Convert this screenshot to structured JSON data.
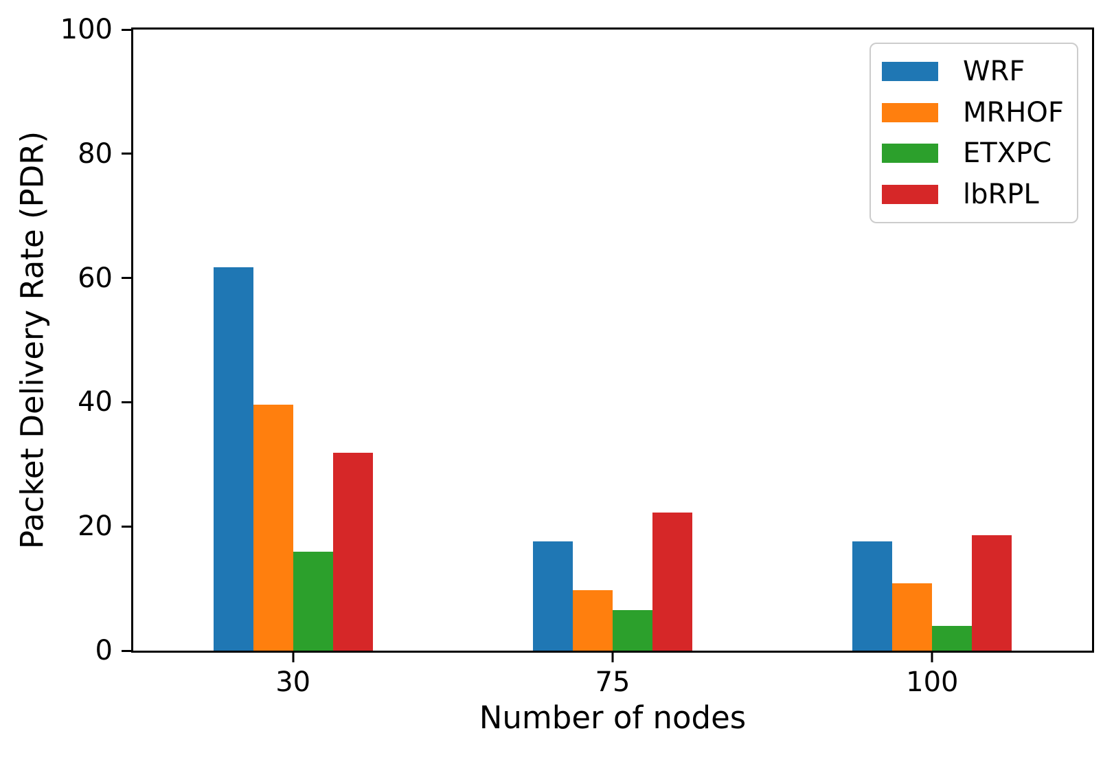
{
  "figure": {
    "background": "#ffffff",
    "text_color": "#000000",
    "axis_color": "#000000"
  },
  "chart_data": {
    "type": "bar",
    "title": "",
    "xlabel": "Number of nodes",
    "ylabel": "Packet Delivery Rate (PDR)",
    "categories": [
      "30",
      "75",
      "100"
    ],
    "series": [
      {
        "name": "WRF",
        "color": "#1f77b4",
        "values": [
          61.7,
          17.6,
          17.6
        ]
      },
      {
        "name": "MRHOF",
        "color": "#ff7f0e",
        "values": [
          39.6,
          9.7,
          10.8
        ]
      },
      {
        "name": "ETXPC",
        "color": "#2ca02c",
        "values": [
          15.9,
          6.5,
          4.0
        ]
      },
      {
        "name": "lbRPL",
        "color": "#d62728",
        "values": [
          31.9,
          22.2,
          18.6
        ]
      }
    ],
    "ylim": [
      0,
      100
    ],
    "yticks": [
      0,
      20,
      40,
      60,
      80,
      100
    ],
    "grid": false,
    "legend_position": "upper right"
  }
}
